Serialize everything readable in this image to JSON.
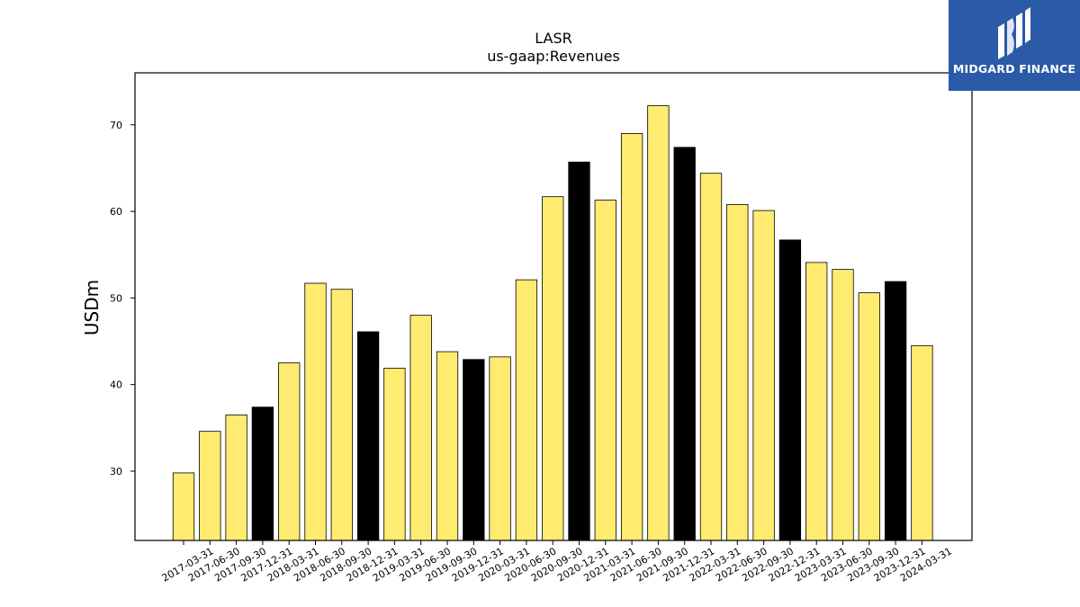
{
  "logo": {
    "text": "MIDGARD FINANCE",
    "icon": "midgard-finance-logo-icon",
    "background": "#2a5aa8"
  },
  "chart_data": {
    "type": "bar",
    "title": "LASR",
    "subtitle": "us-gaap:Revenues",
    "ylabel": "USDm",
    "xlabel": "",
    "ylim": [
      22,
      76
    ],
    "yticks": [
      30,
      40,
      50,
      60,
      70
    ],
    "grid": false,
    "colors": {
      "quarter": "#ffeb70",
      "year_end": "#000000",
      "edge": "#000000"
    },
    "categories": [
      "2017-03-31",
      "2017-06-30",
      "2017-09-30",
      "2017-12-31",
      "2018-03-31",
      "2018-06-30",
      "2018-09-30",
      "2018-12-31",
      "2019-03-31",
      "2019-06-30",
      "2019-09-30",
      "2019-12-31",
      "2020-03-31",
      "2020-06-30",
      "2020-09-30",
      "2020-12-31",
      "2021-03-31",
      "2021-06-30",
      "2021-09-30",
      "2021-12-31",
      "2022-03-31",
      "2022-06-30",
      "2022-09-30",
      "2022-12-31",
      "2023-03-31",
      "2023-06-30",
      "2023-09-30",
      "2023-12-31",
      "2024-03-31"
    ],
    "values": [
      29.8,
      34.6,
      36.5,
      37.4,
      42.5,
      51.7,
      51.0,
      46.1,
      41.9,
      48.0,
      43.8,
      42.9,
      43.2,
      52.1,
      61.7,
      65.7,
      61.3,
      69.0,
      72.2,
      67.4,
      64.4,
      60.8,
      60.1,
      56.7,
      54.1,
      53.3,
      50.6,
      51.9,
      44.5
    ],
    "year_end_flags": [
      false,
      false,
      false,
      true,
      false,
      false,
      false,
      true,
      false,
      false,
      false,
      true,
      false,
      false,
      false,
      true,
      false,
      false,
      false,
      true,
      false,
      false,
      false,
      true,
      false,
      false,
      false,
      true,
      false
    ]
  }
}
